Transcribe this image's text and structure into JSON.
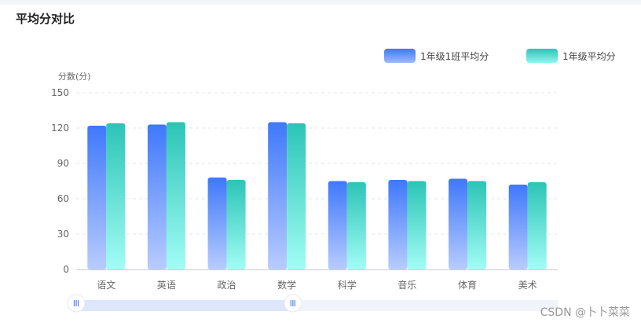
{
  "page_title": "平均分对比",
  "watermark": "CSDN @卜卜菜菜",
  "colors": {
    "series1_top": "#3f78fb",
    "series1_bottom": "#b8ccff",
    "series2_top": "#2cc4b6",
    "series2_bottom": "#a2fdf5",
    "grid": "#e3e6ec",
    "axis": "#c9ccd3",
    "tick_text": "#666666",
    "slider_track": "#e6ecfa",
    "slider_selected": "#dde6fb",
    "slider_handle_icon": "#4f7fe6"
  },
  "chart_data": {
    "type": "bar",
    "title": "平均分对比",
    "ylabel": "分数(分)",
    "xlabel": "",
    "ylim": [
      0,
      150
    ],
    "yticks": [
      0,
      30,
      60,
      90,
      120,
      150
    ],
    "grid": true,
    "legend_position": "top-right",
    "categories": [
      "语文",
      "英语",
      "政治",
      "数学",
      "科学",
      "音乐",
      "体育",
      "美术"
    ],
    "series": [
      {
        "name": "1年级1班平均分",
        "values": [
          122,
          123,
          78,
          125,
          75,
          76,
          77,
          72
        ]
      },
      {
        "name": "1年级平均分",
        "values": [
          124,
          125,
          76,
          124,
          74,
          75,
          75,
          74
        ]
      }
    ],
    "data_zoom": {
      "start_fraction": 0.0,
      "end_fraction": 0.45
    }
  }
}
